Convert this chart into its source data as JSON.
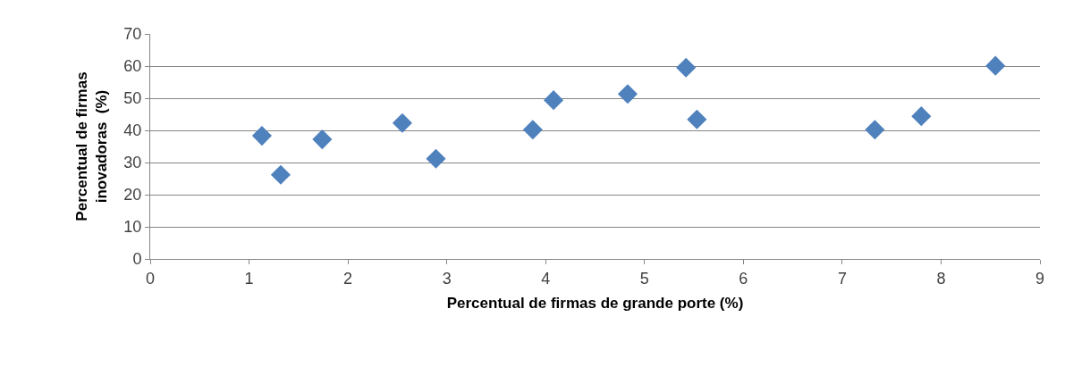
{
  "chart_data": {
    "type": "scatter",
    "xlabel": "Percentual de firmas de grande porte (%)",
    "ylabel": "Percentual de firmas\ninovadoras  (%)",
    "x": [
      1.13,
      1.32,
      1.74,
      2.55,
      2.89,
      3.87,
      4.08,
      4.83,
      5.42,
      5.53,
      7.33,
      7.8,
      8.55
    ],
    "series": [
      {
        "color": "#4f81bd",
        "values": [
          38.3,
          26.2,
          37.2,
          42.3,
          31.2,
          40.2,
          49.4,
          51.3,
          59.5,
          43.4,
          40.2,
          44.4,
          60.1
        ]
      }
    ],
    "xlim": [
      0,
      9
    ],
    "ylim": [
      0,
      70
    ],
    "xticks": [
      0,
      1,
      2,
      3,
      4,
      5,
      6,
      7,
      8,
      9
    ],
    "yticks": [
      0,
      10,
      20,
      30,
      40,
      50,
      60,
      70
    ],
    "grid": "y",
    "marker": "diamond",
    "legend": false
  }
}
